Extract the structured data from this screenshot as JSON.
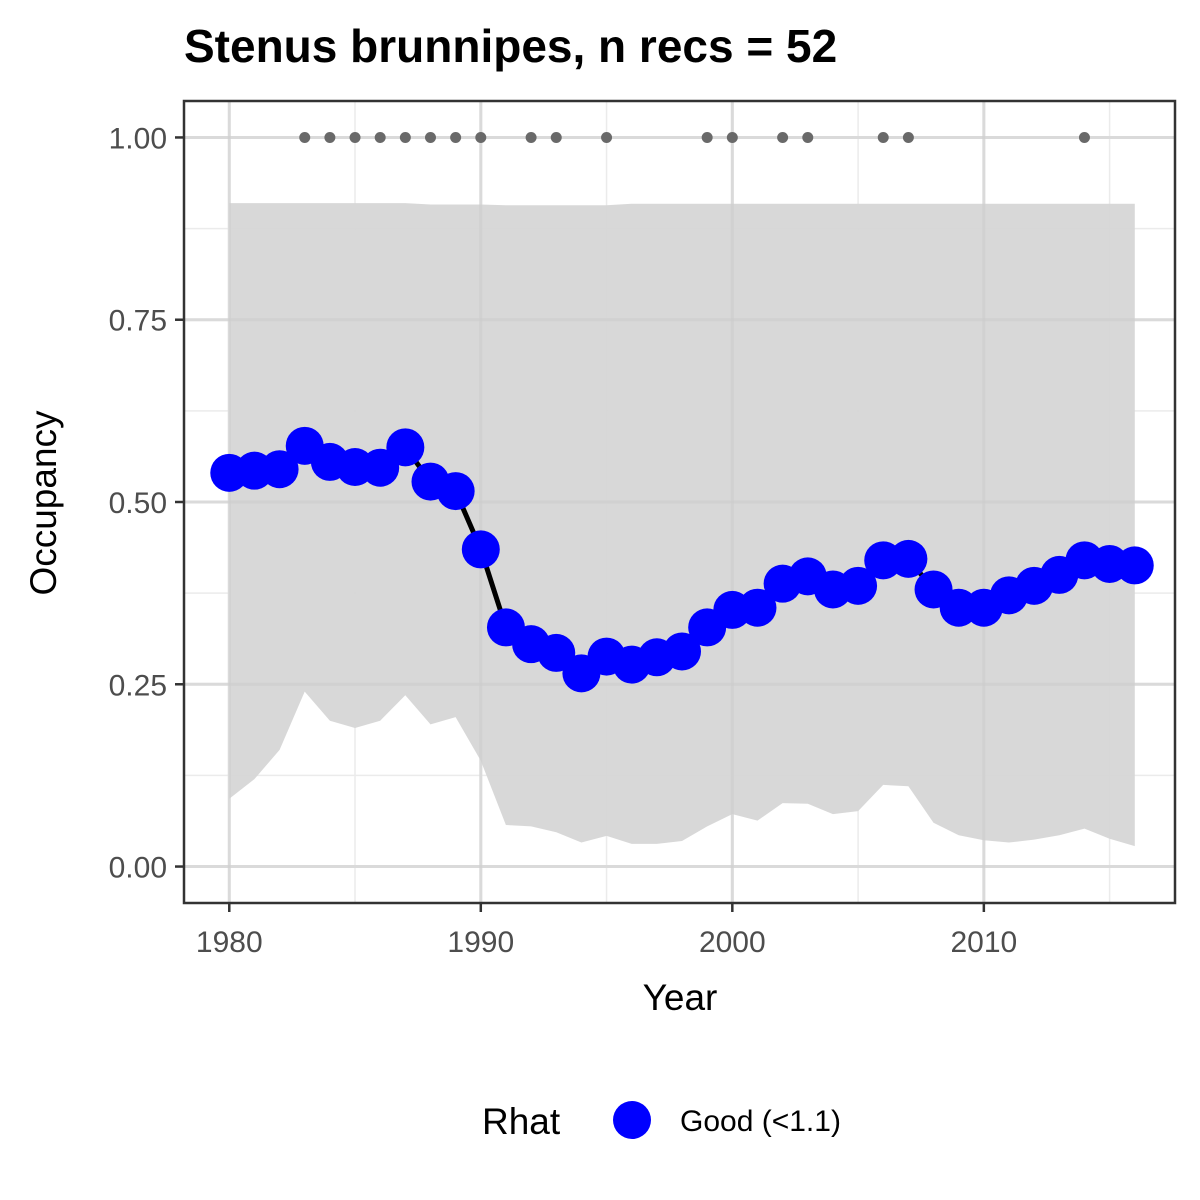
{
  "chart_data": {
    "type": "line",
    "title": "Stenus brunnipes, n recs = 52",
    "xlabel": "Year",
    "ylabel": "Occupancy",
    "xlim": [
      1978.2,
      2017.6
    ],
    "ylim": [
      -0.05,
      1.05
    ],
    "x_ticks": [
      "1980",
      "1990",
      "2000",
      "2010"
    ],
    "x_tick_values": [
      1980,
      1990,
      2000,
      2010
    ],
    "y_ticks": [
      "0.00",
      "0.25",
      "0.50",
      "0.75",
      "1.00"
    ],
    "y_tick_values": [
      0,
      0.25,
      0.5,
      0.75,
      1.0
    ],
    "grid": true,
    "legend": {
      "title": "Rhat",
      "position": "bottom",
      "entries": [
        {
          "label": "Good (<1.1)",
          "color": "#0000FF"
        }
      ]
    },
    "colors": {
      "points": "#0000FF",
      "line": "#000000",
      "ribbon": "#d6d6d6",
      "record_dots": "#696969",
      "grid": "#ebebeb",
      "panel_border": "#333333"
    },
    "series": [
      {
        "x": [
          1980,
          1981,
          1982,
          1983,
          1984,
          1985,
          1986,
          1987,
          1988,
          1989,
          1990,
          1991,
          1992,
          1993,
          1994,
          1995,
          1996,
          1997,
          1998,
          1999,
          2000,
          2001,
          2002,
          2003,
          2004,
          2005,
          2006,
          2007,
          2008,
          2009,
          2010,
          2011,
          2012,
          2013,
          2014,
          2015,
          2016
        ],
        "values": [
          0.54,
          0.543,
          0.545,
          0.577,
          0.555,
          0.548,
          0.547,
          0.575,
          0.528,
          0.515,
          0.435,
          0.328,
          0.305,
          0.293,
          0.265,
          0.288,
          0.277,
          0.287,
          0.295,
          0.328,
          0.352,
          0.355,
          0.388,
          0.398,
          0.38,
          0.385,
          0.42,
          0.422,
          0.38,
          0.355,
          0.355,
          0.372,
          0.385,
          0.4,
          0.42,
          0.415,
          0.413
        ],
        "lower": [
          0.093,
          0.12,
          0.16,
          0.24,
          0.2,
          0.19,
          0.2,
          0.235,
          0.195,
          0.205,
          0.145,
          0.057,
          0.055,
          0.047,
          0.033,
          0.042,
          0.031,
          0.031,
          0.035,
          0.055,
          0.072,
          0.063,
          0.087,
          0.086,
          0.072,
          0.076,
          0.112,
          0.11,
          0.06,
          0.043,
          0.036,
          0.033,
          0.037,
          0.043,
          0.052,
          0.038,
          0.028
        ],
        "upper": [
          0.91,
          0.91,
          0.91,
          0.91,
          0.91,
          0.91,
          0.91,
          0.91,
          0.908,
          0.908,
          0.908,
          0.907,
          0.907,
          0.907,
          0.907,
          0.907,
          0.909,
          0.909,
          0.909,
          0.909,
          0.909,
          0.909,
          0.909,
          0.909,
          0.909,
          0.909,
          0.909,
          0.909,
          0.909,
          0.909,
          0.909,
          0.909,
          0.909,
          0.909,
          0.909,
          0.909,
          0.909
        ]
      }
    ],
    "record_years": [
      1983,
      1984,
      1985,
      1986,
      1987,
      1988,
      1989,
      1990,
      1992,
      1993,
      1995,
      1999,
      2000,
      2002,
      2003,
      2006,
      2007,
      2014
    ],
    "record_y": 1.0
  }
}
